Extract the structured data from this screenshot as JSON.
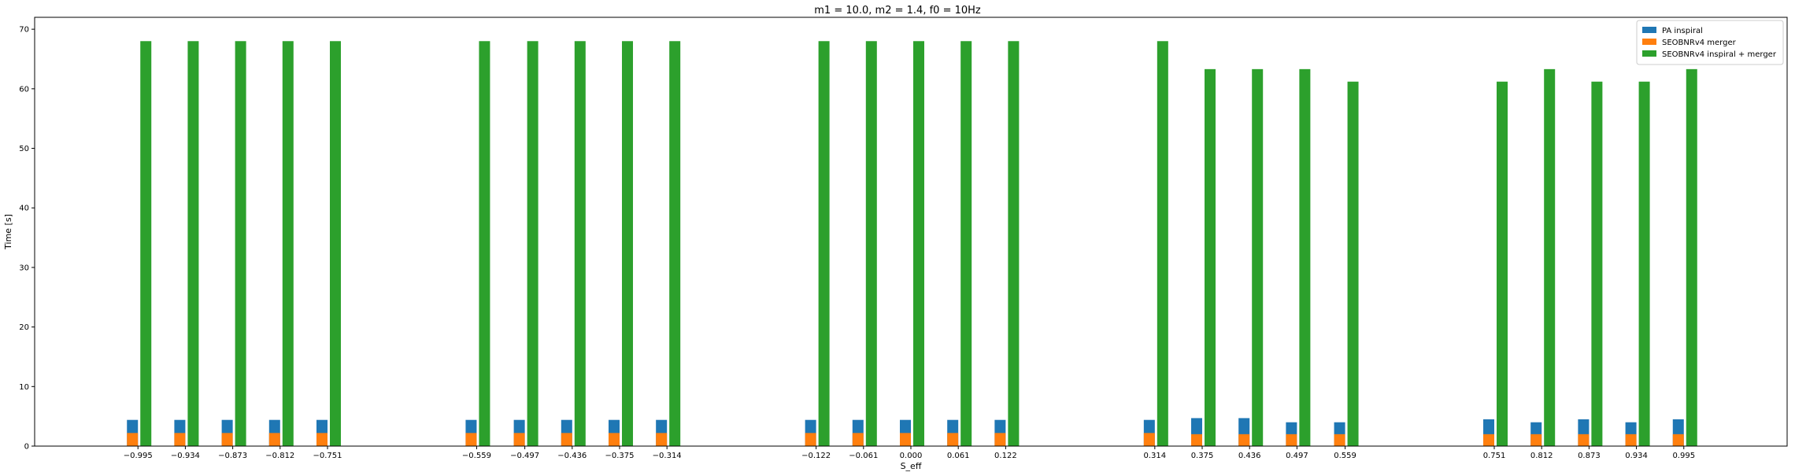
{
  "chart_data": {
    "type": "bar",
    "title": "m1 = 10.0, m2 = 1.4, f0 = 10Hz",
    "xlabel": "S_eff",
    "ylabel": "Time [s]",
    "ylim": [
      0,
      72
    ],
    "yticks": [
      0,
      10,
      20,
      30,
      40,
      50,
      60,
      70
    ],
    "xlim": [
      -1.128,
      1.128
    ],
    "grid": false,
    "legend_position": "top-right",
    "categories": [
      "−0.995",
      "−0.934",
      "−0.873",
      "−0.812",
      "−0.751",
      "−0.559",
      "−0.497",
      "−0.436",
      "−0.375",
      "−0.314",
      "−0.122",
      "−0.061",
      "0.000",
      "0.061",
      "0.122",
      "0.314",
      "0.375",
      "0.436",
      "0.497",
      "0.559",
      "0.751",
      "0.812",
      "0.873",
      "0.934",
      "0.995"
    ],
    "x": [
      -0.995,
      -0.934,
      -0.873,
      -0.812,
      -0.751,
      -0.559,
      -0.497,
      -0.436,
      -0.375,
      -0.314,
      -0.122,
      -0.061,
      0.0,
      0.061,
      0.122,
      0.314,
      0.375,
      0.436,
      0.497,
      0.559,
      0.751,
      0.812,
      0.873,
      0.934,
      0.995
    ],
    "series": [
      {
        "name": "PA inspiral",
        "color": "#1f77b4",
        "values": [
          4.4,
          4.4,
          4.4,
          4.4,
          4.4,
          4.4,
          4.4,
          4.4,
          4.4,
          4.4,
          4.4,
          4.4,
          4.4,
          4.4,
          4.4,
          4.4,
          4.7,
          4.7,
          4.0,
          4.0,
          4.5,
          4.0,
          4.5,
          4.0,
          4.5
        ]
      },
      {
        "name": "SEOBNRv4 merger",
        "color": "#ff7f0e",
        "values": [
          2.2,
          2.2,
          2.2,
          2.2,
          2.2,
          2.2,
          2.2,
          2.2,
          2.2,
          2.2,
          2.2,
          2.2,
          2.2,
          2.2,
          2.2,
          2.2,
          2.0,
          2.0,
          2.0,
          2.0,
          2.0,
          2.0,
          2.0,
          2.0,
          2.0
        ]
      },
      {
        "name": "SEOBNRv4 inspiral + merger",
        "color": "#2ca02c",
        "values": [
          68.0,
          68.0,
          68.0,
          68.0,
          68.0,
          68.0,
          68.0,
          68.0,
          68.0,
          68.0,
          68.0,
          68.0,
          68.0,
          68.0,
          68.0,
          68.0,
          63.3,
          63.3,
          63.3,
          61.2,
          61.2,
          63.3,
          61.2,
          61.2,
          63.3
        ]
      }
    ]
  }
}
